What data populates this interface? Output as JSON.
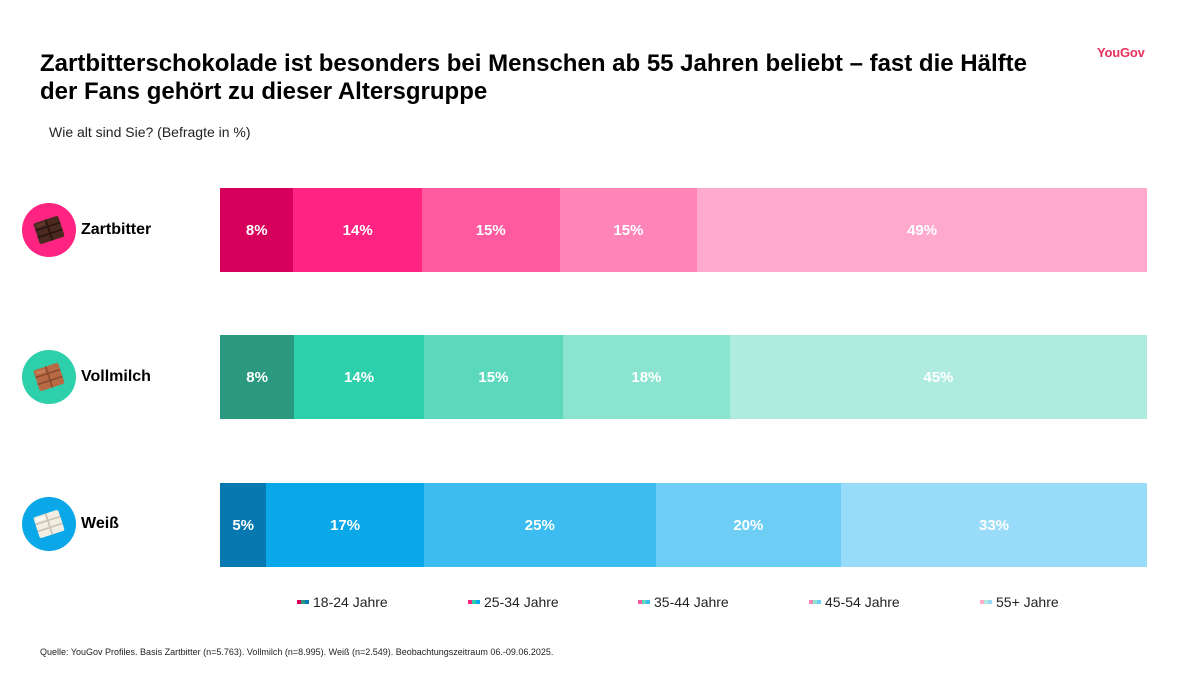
{
  "title": "Zartbitterschokolade ist besonders bei Menschen ab 55 Jahren beliebt – fast die Hälfte der Fans gehört zu dieser Altersgruppe",
  "subtitle": "Wie alt sind Sie? (Befragte in %)",
  "brand": "YouGov",
  "source": "Quelle: YouGov Profiles. Basis Zartbitter (n=5.763). Vollmilch (n=8.995). Weiß (n=2.549). Beobachtungszeitraum 06.-09.06.2025.",
  "chart_data": {
    "type": "bar",
    "orientation": "horizontal",
    "stacked": true,
    "categories": [
      "Zartbitter",
      "Vollmilch",
      "Weiß"
    ],
    "series": [
      {
        "name": "18-24 Jahre",
        "values": [
          8,
          8,
          5
        ]
      },
      {
        "name": "25-34 Jahre",
        "values": [
          14,
          14,
          17
        ]
      },
      {
        "name": "35-44 Jahre",
        "values": [
          15,
          15,
          25
        ]
      },
      {
        "name": "45-54 Jahre",
        "values": [
          15,
          18,
          20
        ]
      },
      {
        "name": "55+ Jahre",
        "values": [
          49,
          45,
          33
        ]
      }
    ],
    "value_suffix": "%",
    "legend_position": "bottom",
    "grid": false,
    "colors": {
      "Zartbitter": [
        "#d6005c",
        "#ff2382",
        "#ff5aa0",
        "#ff85b8",
        "#ffaacd"
      ],
      "Vollmilch": [
        "#2a9980",
        "#2ecfab",
        "#5cd9bd",
        "#8ae4d0",
        "#afebdf"
      ],
      "Weiß": [
        "#0879b0",
        "#0aa8e8",
        "#3cbcf0",
        "#6dcdf5",
        "#99dcfa"
      ]
    },
    "icons": {
      "Zartbitter": {
        "icon": "dark-chocolate-icon",
        "circle": "#ff2382"
      },
      "Vollmilch": {
        "icon": "milk-chocolate-icon",
        "circle": "#2ecfab"
      },
      "Weiß": {
        "icon": "white-chocolate-icon",
        "circle": "#0aa8e8"
      }
    }
  }
}
